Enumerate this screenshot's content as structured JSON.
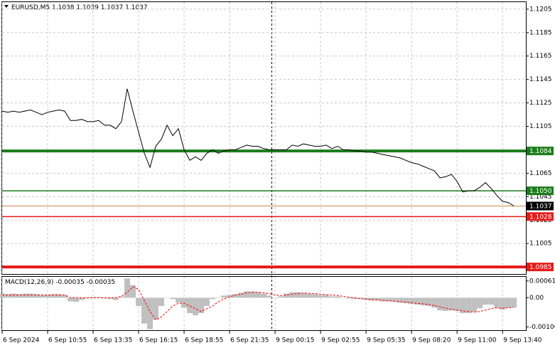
{
  "chart_data": [
    {
      "type": "line",
      "symbol": "EURUSD,M5",
      "ohlc": [
        1.1038,
        1.1039,
        1.1037,
        1.1037
      ],
      "color": "#000000",
      "values": [
        1.1118,
        1.1117,
        1.1118,
        1.1117,
        1.1118,
        1.1119,
        1.1117,
        1.1115,
        1.1117,
        1.1118,
        1.1119,
        1.1118,
        1.111,
        1.111,
        1.1111,
        1.1109,
        1.1109,
        1.111,
        1.1106,
        1.1106,
        1.1103,
        1.1109,
        1.1137,
        1.1118,
        1.11,
        1.1082,
        1.107,
        1.1088,
        1.1094,
        1.1106,
        1.1097,
        1.1103,
        1.1085,
        1.1076,
        1.1079,
        1.1076,
        1.1082,
        1.1085,
        1.1082,
        1.1084,
        1.1085,
        1.1085,
        1.1087,
        1.1089,
        1.1088,
        1.1088,
        1.1086,
        1.1085,
        1.1085,
        1.1085,
        1.1085,
        1.1089,
        1.1088,
        1.109,
        1.1089,
        1.1088,
        1.1088,
        1.1089,
        1.1086,
        1.1088,
        1.1085,
        1.1085,
        1.1084,
        1.1084,
        1.1083,
        1.1083,
        1.1082,
        1.1081,
        1.108,
        1.1079,
        1.1078,
        1.1076,
        1.1074,
        1.1073,
        1.1071,
        1.1069,
        1.1067,
        1.1061,
        1.1062,
        1.1064,
        1.1058,
        1.1049,
        1.105,
        1.105,
        1.1053,
        1.1057,
        1.1052,
        1.1046,
        1.1041,
        1.104,
        1.1037
      ],
      "xlim": [
        0,
        92.1
      ],
      "ylim": [
        1.0979,
        1.1211
      ],
      "yticks": [
        1.1205,
        1.1185,
        1.1165,
        1.1145,
        1.1125,
        1.1105,
        1.1065,
        1.1045,
        1.1025,
        1.1005
      ],
      "grid": true,
      "levels": [
        {
          "value": 1.1084,
          "label": "1.1084",
          "color": "#1b7d1b",
          "box": "#1b7d1b",
          "thick": true
        },
        {
          "value": 1.105,
          "label": "1.1050",
          "color": "#1b7d1b",
          "box": "#1b7d1b",
          "thick": false
        },
        {
          "value": 1.1037,
          "label": "1.1037",
          "color": "#d9a77a",
          "box": "#000000",
          "thick": false
        },
        {
          "value": 1.1028,
          "label": "1.1028",
          "color": "#e51a1a",
          "box": "#e51a1a",
          "thick": false
        },
        {
          "value": 1.0985,
          "label": "1.0985",
          "color": "#e51a1a",
          "box": "#e51a1a",
          "thick": true
        }
      ]
    },
    {
      "type": "macd",
      "title": "MACD(12,26,9)",
      "readout": [
        -0.00035,
        -0.00035
      ],
      "histogram": {
        "color": "#c0c0c0",
        "values": [
          0.00015,
          0.00013,
          0.00015,
          0.00013,
          0.00015,
          0.00015,
          0.00013,
          0.0001,
          0.0001,
          0.00013,
          0.00013,
          0.0001,
          -0.00013,
          -0.00015,
          -8e-05,
          -3e-05,
          3e-05,
          3e-05,
          -3e-05,
          -5e-05,
          -8e-05,
          5e-05,
          0.0007,
          0.00046,
          -0.0003,
          -0.00094,
          -0.00114,
          -0.0008,
          -0.0003,
          0,
          -5e-05,
          -0.00018,
          -0.00036,
          -0.00056,
          -0.00064,
          -0.00056,
          -0.0003,
          -5e-05,
          0,
          8e-05,
          0.0001,
          0.00013,
          0.00018,
          0.00023,
          0.00023,
          0.0002,
          0.00015,
          8e-05,
          0,
          5e-05,
          0.00015,
          0.0002,
          0.0002,
          0.00018,
          0.00015,
          0.00013,
          0.0001,
          0.0001,
          5e-05,
          5e-05,
          0,
          -3e-05,
          -5e-05,
          -5e-05,
          -8e-05,
          -0.0001,
          -0.0001,
          -0.00013,
          -0.00013,
          -0.00015,
          -0.00018,
          -0.0002,
          -0.00023,
          -0.00025,
          -0.00028,
          -0.0003,
          -0.00036,
          -0.00046,
          -0.00048,
          -0.00046,
          -0.00048,
          -0.00056,
          -0.00056,
          -0.00051,
          -0.00038,
          -0.00025,
          -0.00025,
          -0.00036,
          -0.00043,
          -0.00036,
          -0.00035
        ]
      },
      "signal": {
        "color": "#ff0000",
        "values": [
          0.0001,
          0.0001,
          0.0001,
          0.0001,
          0.0001,
          0.0001,
          0.0001,
          0.0001,
          0.0001,
          0.0001,
          0.0001,
          0.0001,
          0,
          0,
          0,
          0,
          0,
          0,
          0,
          0,
          0,
          5e-05,
          0.0002,
          0.0004,
          0.0003,
          -0.0001,
          -0.0005,
          -0.0008,
          -0.0007,
          -0.0005,
          -0.0003,
          -0.0002,
          -0.0002,
          -0.0003,
          -0.0004,
          -0.0005,
          -0.0004,
          -0.0003,
          -0.00015,
          -5e-05,
          3e-05,
          0.0001,
          0.00013,
          0.00018,
          0.0002,
          0.0002,
          0.00018,
          0.00015,
          0.0001,
          8e-05,
          0.0001,
          0.00013,
          0.00015,
          0.00017,
          0.00016,
          0.00015,
          0.00013,
          0.00011,
          0.0001,
          8e-05,
          5e-05,
          2e-05,
          0,
          -3e-05,
          -5e-05,
          -7e-05,
          -8e-05,
          -0.0001,
          -0.00011,
          -0.00013,
          -0.00014,
          -0.00016,
          -0.00018,
          -0.0002,
          -0.00022,
          -0.00025,
          -0.00028,
          -0.00033,
          -0.00038,
          -0.00042,
          -0.00045,
          -0.00048,
          -0.0005,
          -0.00052,
          -0.0005,
          -0.00045,
          -0.00039,
          -0.00037,
          -0.00038,
          -0.00036,
          -0.00035
        ]
      },
      "xlim": [
        0,
        92.1
      ],
      "ylim": [
        -0.00118,
        0.00076
      ],
      "yticks": [
        0.00061,
        {
          "value": 0,
          "label": "0.00"
        },
        -0.00106
      ],
      "xticks": [
        {
          "value": 0,
          "label": "6 Sep 2024"
        },
        {
          "value": 8,
          "label": "6 Sep 10:55"
        },
        {
          "value": 16,
          "label": "6 Sep 13:35"
        },
        {
          "value": 24,
          "label": "6 Sep 16:15"
        },
        {
          "value": 32,
          "label": "6 Sep 18:55"
        },
        {
          "value": 40,
          "label": "6 Sep 21:35"
        },
        {
          "value": 48,
          "label": "9 Sep 00:15"
        },
        {
          "value": 56,
          "label": "9 Sep 02:55"
        },
        {
          "value": 64,
          "label": "9 Sep 05:35"
        },
        {
          "value": 72,
          "label": "9 Sep 08:20"
        },
        {
          "value": 80,
          "label": "9 Sep 11:00"
        },
        {
          "value": 88,
          "label": "9 Sep 13:40"
        }
      ]
    }
  ]
}
